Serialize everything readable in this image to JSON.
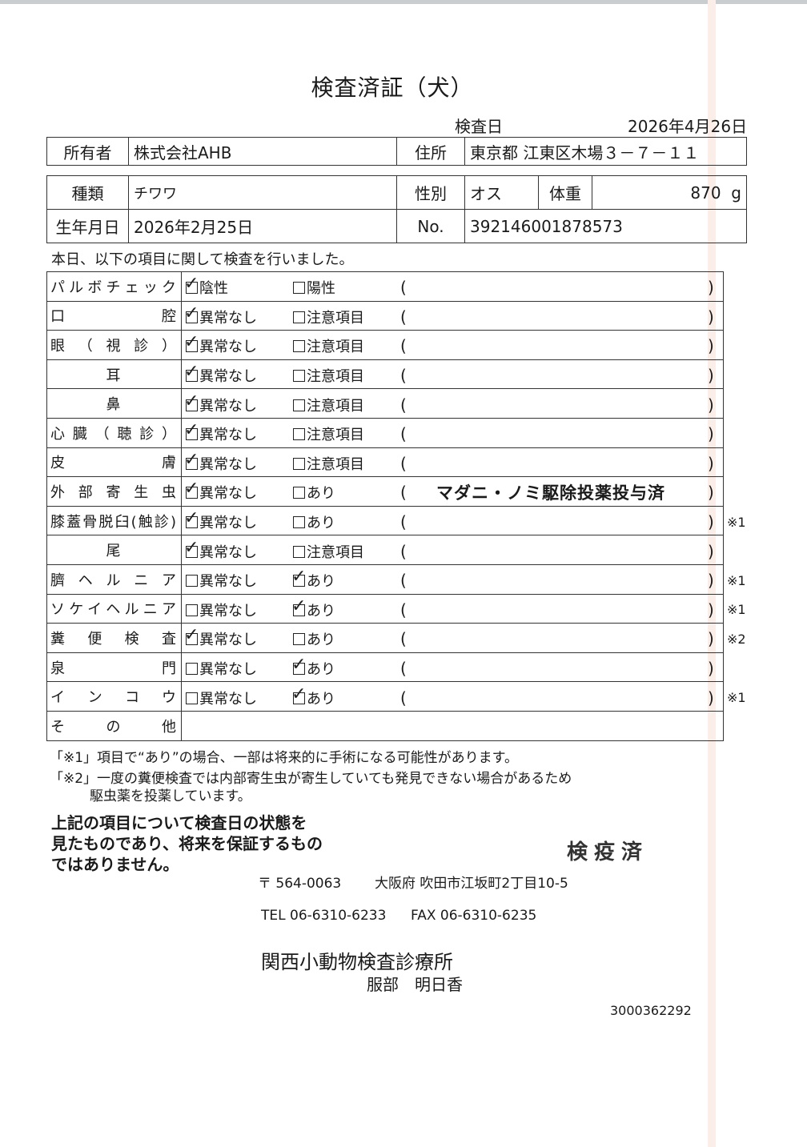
{
  "title": "検査済証（犬）",
  "exam_date_label": "検査日",
  "exam_date": "2026年4月26日",
  "owner": {
    "label": "所有者",
    "value": "株式会社AHB"
  },
  "address": {
    "label": "住所",
    "value": "東京都 江東区木場３－７－１１"
  },
  "breed": {
    "label": "種類",
    "value": "チワワ"
  },
  "sex": {
    "label": "性別",
    "value": "オス"
  },
  "weight": {
    "label": "体重",
    "value": "870",
    "unit": "g"
  },
  "birth": {
    "label": "生年月日",
    "value": "2026年2月25日"
  },
  "number": {
    "label": "No.",
    "value": "392146001878573"
  },
  "intro": "本日、以下の項目に関して検査を行いました。",
  "items": [
    {
      "label": "パルボチェック",
      "opt1": "陰性",
      "opt2": "陽性",
      "checked": 1,
      "note": "",
      "mark": ""
    },
    {
      "label": "口腔",
      "opt1": "異常なし",
      "opt2": "注意項目",
      "checked": 1,
      "note": "",
      "mark": ""
    },
    {
      "label": "眼（視診）",
      "opt1": "異常なし",
      "opt2": "注意項目",
      "checked": 1,
      "note": "",
      "mark": ""
    },
    {
      "label": "耳",
      "opt1": "異常なし",
      "opt2": "注意項目",
      "checked": 1,
      "note": "",
      "mark": ""
    },
    {
      "label": "鼻",
      "opt1": "異常なし",
      "opt2": "注意項目",
      "checked": 1,
      "note": "",
      "mark": ""
    },
    {
      "label": "心臓（聴診）",
      "opt1": "異常なし",
      "opt2": "注意項目",
      "checked": 1,
      "note": "",
      "mark": ""
    },
    {
      "label": "皮膚",
      "opt1": "異常なし",
      "opt2": "注意項目",
      "checked": 1,
      "note": "",
      "mark": ""
    },
    {
      "label": "外部寄生虫",
      "opt1": "異常なし",
      "opt2": "あり",
      "checked": 1,
      "note": "マダニ・ノミ駆除投薬投与済",
      "mark": ""
    },
    {
      "label": "膝蓋骨脱臼(触診)",
      "opt1": "異常なし",
      "opt2": "あり",
      "checked": 1,
      "note": "",
      "mark": "※1"
    },
    {
      "label": "尾",
      "opt1": "異常なし",
      "opt2": "注意項目",
      "checked": 1,
      "note": "",
      "mark": ""
    },
    {
      "label": "臍ヘルニア",
      "opt1": "異常なし",
      "opt2": "あり",
      "checked": 2,
      "note": "",
      "mark": "※1"
    },
    {
      "label": "ソケイヘルニア",
      "opt1": "異常なし",
      "opt2": "あり",
      "checked": 2,
      "note": "",
      "mark": "※1"
    },
    {
      "label": "糞便検査",
      "opt1": "異常なし",
      "opt2": "あり",
      "checked": 1,
      "note": "",
      "mark": "※2"
    },
    {
      "label": "泉門",
      "opt1": "異常なし",
      "opt2": "あり",
      "checked": 2,
      "note": "",
      "mark": ""
    },
    {
      "label": "インコウ",
      "opt1": "異常なし",
      "opt2": "あり",
      "checked": 2,
      "note": "",
      "mark": "※1"
    }
  ],
  "other_label": "その他",
  "footnote1": "「※1」項目で“あり”の場合、一部は将来的に手術になる可能性があります。",
  "footnote2a": "「※2」一度の糞便検査では内部寄生虫が寄生していても発見できない場合があるため",
  "footnote2b": "駆虫薬を投薬しています。",
  "disclaimer": [
    "上記の項目について検査日の状態を",
    "見たものであり、将来を保証するもの",
    "ではありません。"
  ],
  "stamp": "検疫済",
  "postal": "〒 564-0063",
  "clinic_address": "大阪府 吹田市江坂町2丁目10-5",
  "tel": "TEL 06-6310-6233",
  "fax": "FAX 06-6310-6235",
  "clinic_name": "関西小動物検査診療所",
  "person": "服部　明日香",
  "doc_number": "3000362292"
}
